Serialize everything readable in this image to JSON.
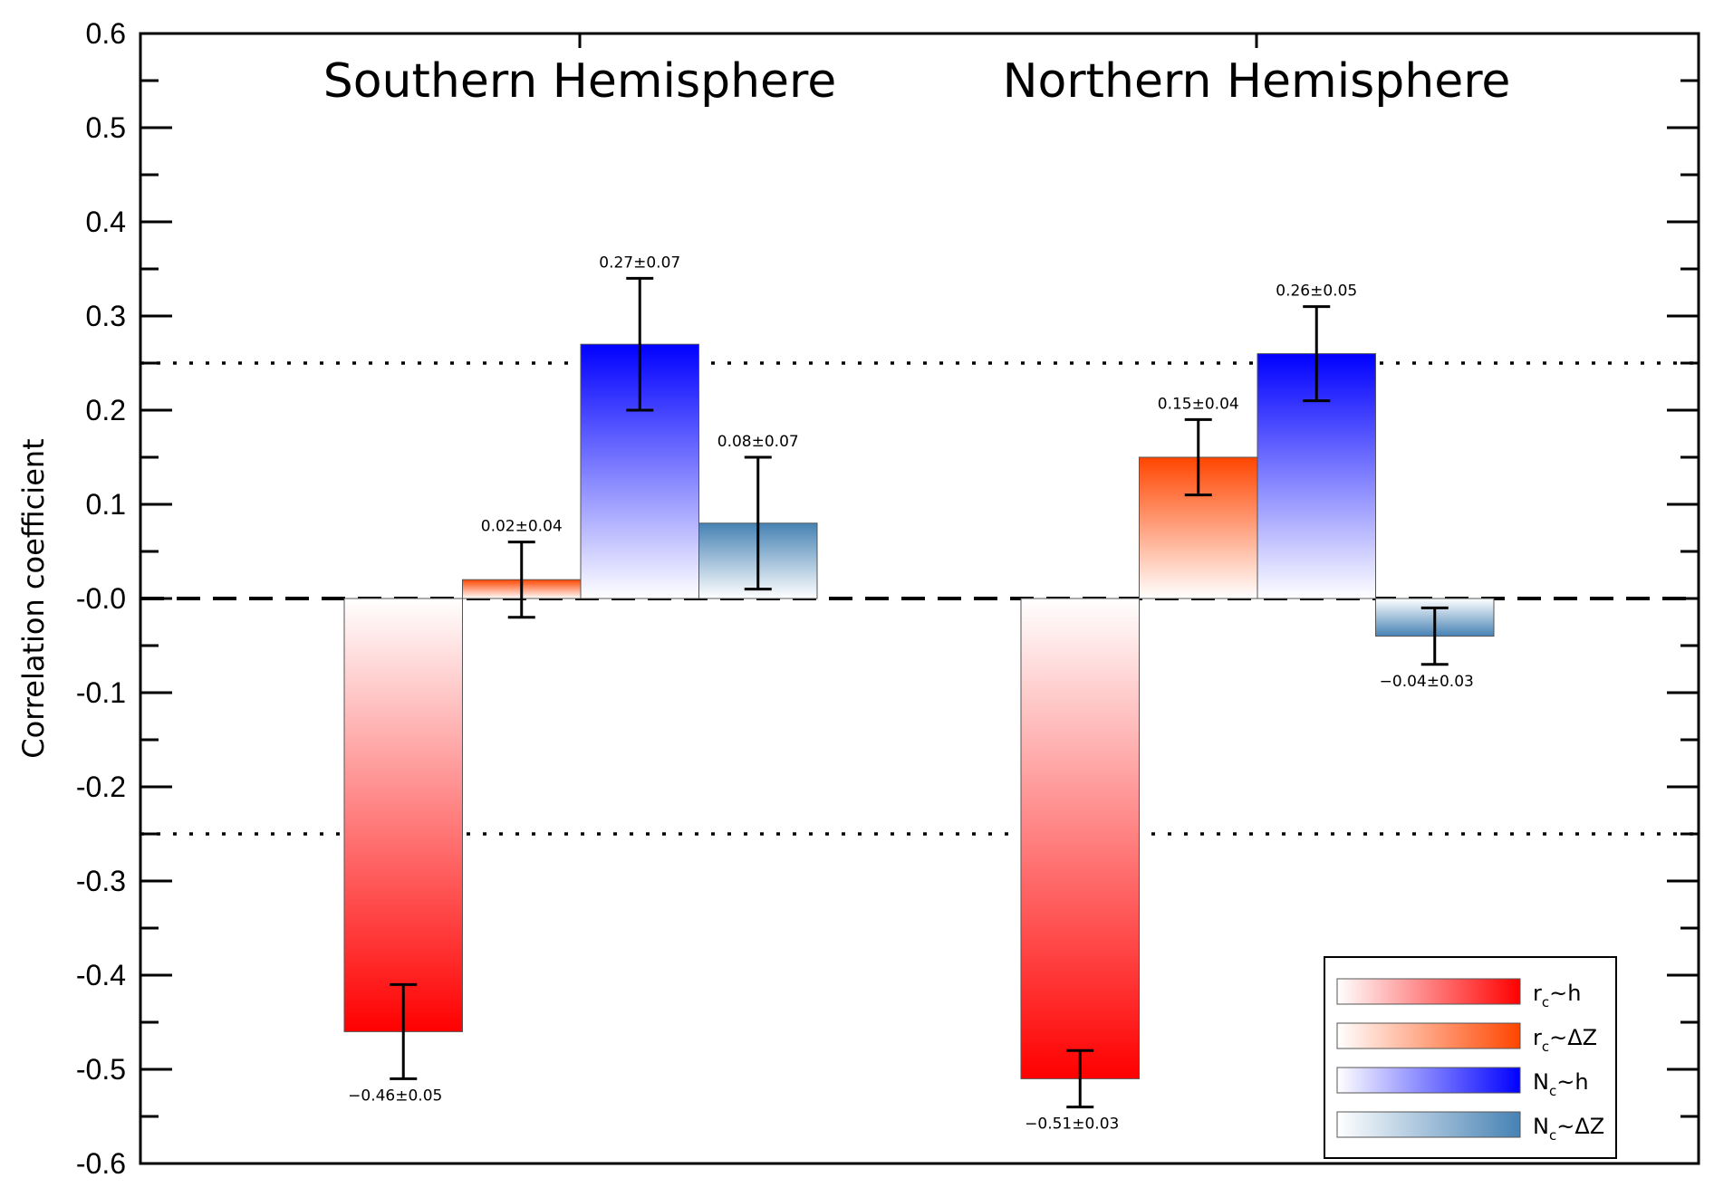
{
  "chart_data": {
    "type": "bar",
    "ylabel": "Correlation coefficient",
    "ylim": [
      -0.6,
      0.6
    ],
    "y_ticks": [
      0.6,
      0.5,
      0.4,
      0.3,
      0.2,
      0.1,
      0.0,
      -0.1,
      -0.2,
      -0.3,
      -0.4,
      -0.5,
      -0.6
    ],
    "y_tick_labels": [
      "0.6",
      "0.5",
      "0.4",
      "0.3",
      "0.2",
      "0.1",
      "-0.0",
      "-0.1",
      "-0.2",
      "-0.3",
      "-0.4",
      "-0.5",
      "-0.6"
    ],
    "reference_lines": [
      {
        "y": 0.0,
        "style": "dashed"
      },
      {
        "y": 0.25,
        "style": "dotted"
      },
      {
        "y": -0.25,
        "style": "dotted"
      }
    ],
    "groups": [
      {
        "title": "Southern Hemisphere",
        "bars": [
          {
            "series": "rc_h",
            "value": -0.46,
            "error": 0.05,
            "label": "−0.46±0.05"
          },
          {
            "series": "rc_dz",
            "value": 0.02,
            "error": 0.04,
            "label": "0.02±0.04"
          },
          {
            "series": "nc_h",
            "value": 0.27,
            "error": 0.07,
            "label": "0.27±0.07"
          },
          {
            "series": "nc_dz",
            "value": 0.08,
            "error": 0.07,
            "label": "0.08±0.07"
          }
        ]
      },
      {
        "title": "Northern Hemisphere",
        "bars": [
          {
            "series": "rc_h",
            "value": -0.51,
            "error": 0.03,
            "label": "−0.51±0.03"
          },
          {
            "series": "rc_dz",
            "value": 0.15,
            "error": 0.04,
            "label": "0.15±0.04"
          },
          {
            "series": "nc_h",
            "value": 0.26,
            "error": 0.05,
            "label": "0.26±0.05"
          },
          {
            "series": "nc_dz",
            "value": -0.04,
            "error": 0.03,
            "label": "−0.04±0.03"
          }
        ]
      }
    ],
    "series": [
      {
        "id": "rc_h",
        "name_main": "r",
        "name_sub": "c",
        "name_rest": "~h",
        "color": "#ff0000"
      },
      {
        "id": "rc_dz",
        "name_main": "r",
        "name_sub": "c",
        "name_rest": "~ΔZ",
        "color": "#ff4500"
      },
      {
        "id": "nc_h",
        "name_main": "N",
        "name_sub": "c",
        "name_rest": "~h",
        "color": "#0000ff"
      },
      {
        "id": "nc_dz",
        "name_main": "N",
        "name_sub": "c",
        "name_rest": "~ΔZ",
        "color": "#4682b4"
      }
    ],
    "legend_position": "bottom-right"
  }
}
